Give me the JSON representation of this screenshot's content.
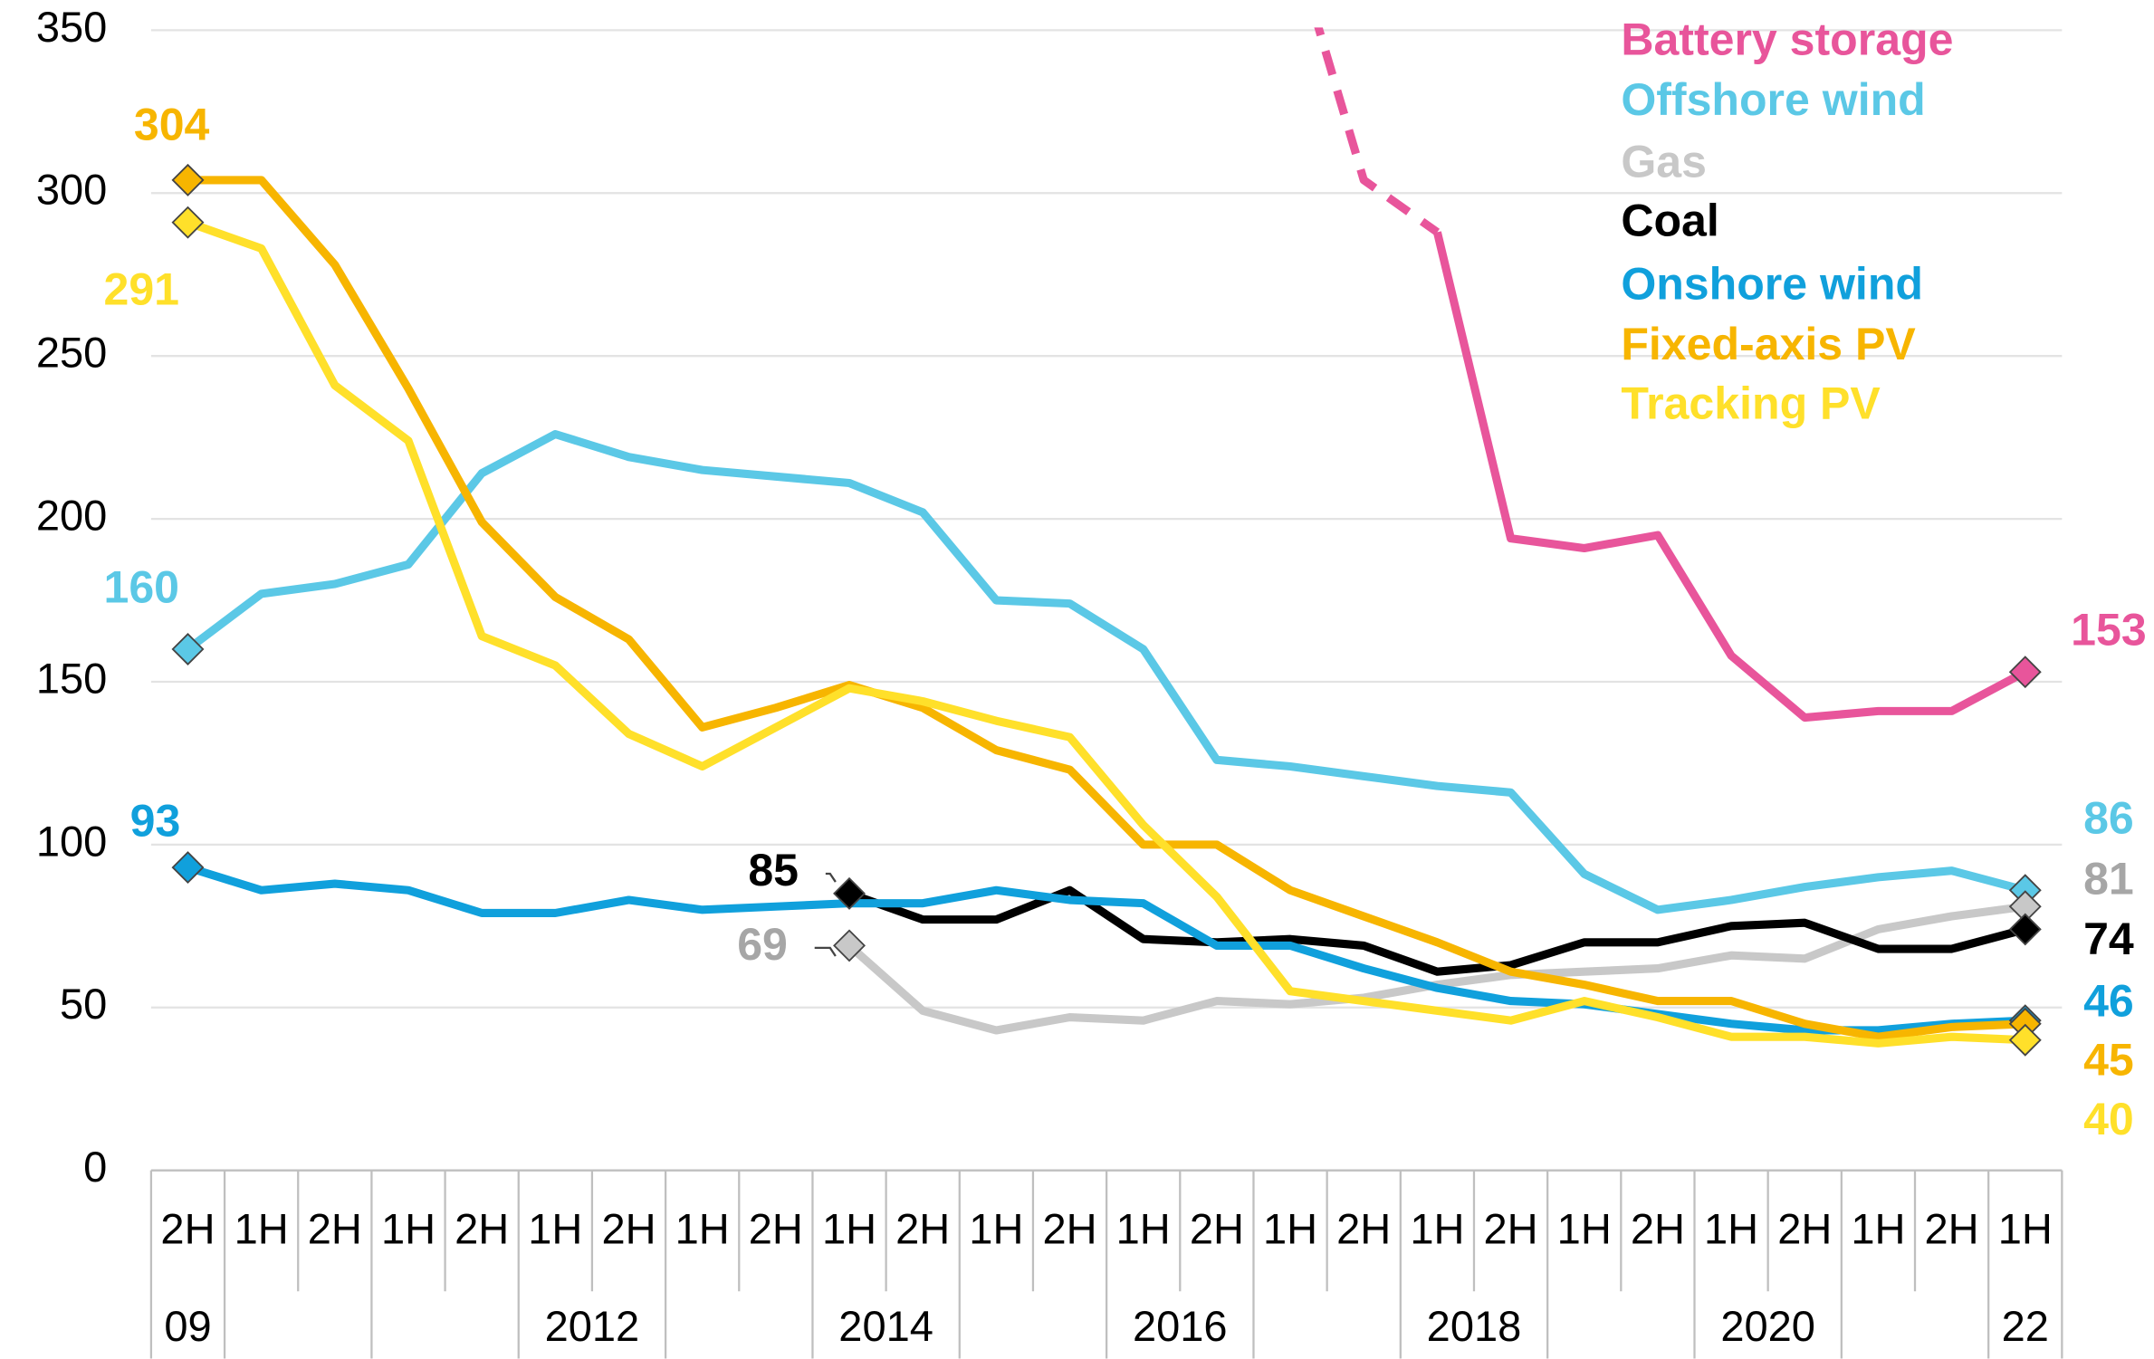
{
  "chart_data": {
    "type": "line",
    "categories": [
      "2H",
      "1H",
      "2H",
      "1H",
      "2H",
      "1H",
      "2H",
      "1H",
      "2H",
      "1H",
      "2H",
      "1H",
      "2H",
      "1H",
      "2H",
      "1H",
      "2H",
      "1H",
      "2H",
      "1H",
      "2H",
      "1H",
      "2H",
      "1H",
      "2H",
      "1H"
    ],
    "year_labels": [
      "09",
      null,
      null,
      null,
      null,
      "2012",
      null,
      null,
      null,
      "2014",
      null,
      null,
      null,
      "2016",
      null,
      null,
      null,
      "2018",
      null,
      null,
      null,
      "2020",
      null,
      null,
      null,
      "22"
    ],
    "ylim": [
      0,
      350
    ],
    "yticks": [
      0,
      50,
      100,
      150,
      200,
      250,
      300,
      350
    ],
    "grid": true,
    "legend": "top-right",
    "series": [
      {
        "name": "Battery storage",
        "color": "#e8559b",
        "dashed_until_index": 17,
        "values": [
          null,
          null,
          null,
          null,
          null,
          null,
          null,
          null,
          null,
          null,
          null,
          null,
          null,
          null,
          null,
          380,
          304,
          288,
          194,
          191,
          195,
          158,
          139,
          141,
          141,
          153
        ]
      },
      {
        "name": "Offshore wind",
        "color": "#5bc8e6",
        "values": [
          160,
          177,
          180,
          186,
          214,
          226,
          219,
          215,
          213,
          211,
          202,
          175,
          174,
          160,
          126,
          124,
          121,
          118,
          116,
          91,
          80,
          83,
          87,
          90,
          92,
          86
        ]
      },
      {
        "name": "Gas",
        "color": "#c8c8c8",
        "values": [
          null,
          null,
          null,
          null,
          null,
          null,
          null,
          null,
          null,
          69,
          49,
          43,
          47,
          46,
          52,
          51,
          53,
          57,
          60,
          61,
          62,
          66,
          65,
          74,
          78,
          81
        ]
      },
      {
        "name": "Coal",
        "color": "#000000",
        "values": [
          null,
          null,
          null,
          null,
          null,
          null,
          null,
          null,
          null,
          85,
          77,
          77,
          86,
          71,
          70,
          71,
          69,
          61,
          63,
          70,
          70,
          75,
          76,
          68,
          68,
          74
        ]
      },
      {
        "name": "Onshore wind",
        "color": "#10a0dc",
        "values": [
          93,
          86,
          88,
          86,
          79,
          79,
          83,
          80,
          81,
          82,
          82,
          86,
          83,
          82,
          69,
          69,
          62,
          56,
          52,
          51,
          48,
          45,
          43,
          43,
          45,
          46
        ]
      },
      {
        "name": "Fixed-axis PV",
        "color": "#f7b500",
        "values": [
          304,
          304,
          278,
          240,
          199,
          176,
          163,
          136,
          142,
          149,
          142,
          129,
          123,
          100,
          100,
          86,
          78,
          70,
          61,
          57,
          52,
          52,
          45,
          41,
          44,
          45
        ]
      },
      {
        "name": "Tracking PV",
        "color": "#ffe02a",
        "values": [
          291,
          283,
          241,
          224,
          164,
          155,
          134,
          124,
          136,
          148,
          144,
          138,
          133,
          106,
          84,
          55,
          52,
          49,
          46,
          52,
          47,
          41,
          41,
          39,
          41,
          40
        ]
      }
    ]
  }
}
